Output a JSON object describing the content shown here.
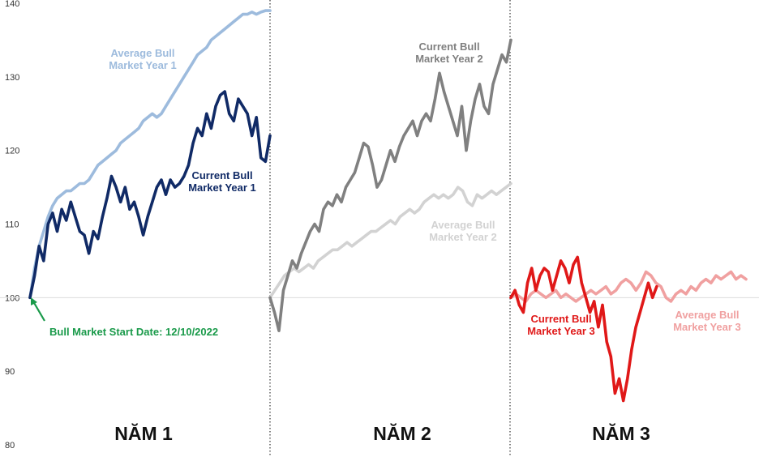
{
  "chart_data": {
    "type": "line",
    "ylim": [
      80,
      140
    ],
    "yticks": [
      80,
      90,
      100,
      110,
      120,
      130,
      140
    ],
    "grid_y": 100,
    "panels": [
      {
        "label": "NĂM 1",
        "series": [
          {
            "name": "Average Bull Market Year 1",
            "label_lines": [
              "Average Bull",
              "Market Year 1"
            ],
            "color": "#9dbbdd",
            "values": [
              100,
              104,
              107,
              109,
              111,
              112.5,
              113.5,
              114,
              114.5,
              114.5,
              115,
              115.5,
              115.5,
              116,
              117,
              118,
              118.5,
              119,
              119.5,
              120,
              121,
              121.5,
              122,
              122.5,
              123,
              124,
              124.5,
              125,
              124.5,
              125,
              126,
              127,
              128,
              129,
              130,
              131,
              132,
              133,
              133.5,
              134,
              135,
              135.5,
              136,
              136.5,
              137,
              137.5,
              138,
              138.5,
              138.5,
              138.8,
              138.5,
              138.8,
              139,
              139
            ]
          },
          {
            "name": "Current Bull Market Year 1",
            "label_lines": [
              "Current Bull",
              "Market Year 1"
            ],
            "color": "#102a66",
            "values": [
              100,
              103,
              107,
              105,
              110,
              111.5,
              109,
              112,
              110.5,
              113,
              111,
              109,
              108.5,
              106,
              109,
              108,
              111,
              113.5,
              116.5,
              115,
              113,
              115,
              112,
              113,
              111,
              108.5,
              111,
              113,
              115,
              116,
              114,
              116,
              115,
              115.5,
              116.5,
              118,
              121,
              123,
              122,
              125,
              123,
              126,
              127.5,
              128,
              125,
              124,
              127,
              126,
              125,
              122,
              124.5,
              119,
              118.5,
              122
            ]
          }
        ],
        "annotation": "Bull Market Start Date: 12/10/2022",
        "annotation_color": "#1a9a4a"
      },
      {
        "label": "NĂM 2",
        "series": [
          {
            "name": "Current Bull Market Year 2",
            "label_lines": [
              "Current Bull",
              "Market Year 2"
            ],
            "color": "#808080",
            "values": [
              100,
              98,
              95.5,
              101,
              103,
              105,
              104,
              106,
              107.5,
              109,
              110,
              109,
              112,
              113,
              112.5,
              114,
              113,
              115,
              116,
              117,
              119,
              121,
              120.5,
              118,
              115,
              116,
              118,
              120,
              118.5,
              120.5,
              122,
              123,
              124,
              122,
              124,
              125,
              124,
              127,
              130.5,
              128,
              126,
              124,
              122,
              126,
              120,
              124,
              127,
              129,
              126,
              125,
              129,
              131,
              133,
              132,
              135
            ]
          },
          {
            "name": "Average Bull Market Year 2",
            "label_lines": [
              "Average Bull",
              "Market Year 2"
            ],
            "color": "#d2d2d2",
            "values": [
              100,
              101,
              102,
              103,
              103.5,
              104,
              103.5,
              104,
              104.5,
              104,
              105,
              105.5,
              106,
              106.5,
              106.5,
              107,
              107.5,
              107,
              107.5,
              108,
              108.5,
              109,
              109,
              109.5,
              110,
              110.5,
              110,
              111,
              111.5,
              112,
              111.5,
              112,
              113,
              113.5,
              114,
              113.5,
              114,
              113.5,
              114,
              115,
              114.5,
              113,
              112.5,
              114,
              113.5,
              114,
              114.5,
              114,
              114.5,
              115,
              115.5
            ]
          }
        ]
      },
      {
        "label": "NĂM 3",
        "series": [
          {
            "name": "Current Bull Market Year 3",
            "label_lines": [
              "Current Bull",
              "Market Year 3"
            ],
            "color": "#e01818",
            "values": [
              100,
              101,
              99,
              98,
              102,
              104,
              101,
              103,
              104,
              103.5,
              101,
              103,
              105,
              104,
              102,
              104.5,
              105.5,
              102,
              100,
              98,
              99.5,
              96,
              99,
              94,
              92,
              87,
              89,
              86,
              89,
              93,
              96,
              98,
              100,
              102,
              100,
              101.5
            ]
          },
          {
            "name": "Average Bull Market Year 3",
            "label_lines": [
              "Average Bull",
              "Market Year 3"
            ],
            "color": "#f0a0a0",
            "values": [
              100,
              100.5,
              100,
              99.5,
              100.5,
              101,
              100.5,
              100,
              100.5,
              101,
              100,
              100.5,
              100,
              99.5,
              100,
              100.5,
              101,
              100.5,
              101,
              101.5,
              100.5,
              101,
              102,
              102.5,
              102,
              101,
              102,
              103.5,
              103,
              102,
              101.5,
              100,
              99.5,
              100.5,
              101,
              100.5,
              101.5,
              101,
              102,
              102.5,
              102,
              103,
              102.5,
              103,
              103.5,
              102.5,
              103,
              102.5
            ]
          }
        ]
      }
    ]
  }
}
